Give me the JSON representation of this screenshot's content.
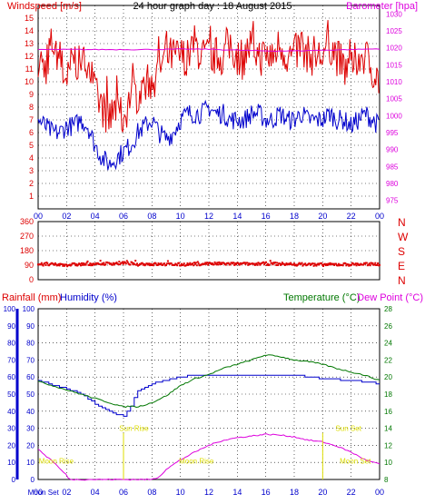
{
  "chart_data": [
    {
      "type": "line",
      "title": "24 hour graph day : 18 August 2015",
      "ylabel": "Windspeed [m/s]",
      "ylabel_right": "Barometer [hpa]",
      "ylim": [
        0,
        16
      ],
      "ylim_right": [
        972.5,
        1032.5
      ],
      "yticks": [
        1,
        2,
        3,
        4,
        5,
        6,
        7,
        8,
        9,
        10,
        11,
        12,
        13,
        14,
        15
      ],
      "yticks_right": [
        975,
        980,
        985,
        990,
        995,
        1000,
        1005,
        1010,
        1015,
        1020,
        1025,
        1030
      ],
      "xticks": [
        "00",
        "02",
        "04",
        "06",
        "08",
        "10",
        "12",
        "14",
        "16",
        "18",
        "20",
        "22",
        "00"
      ],
      "grid": true,
      "colors": {
        "wind_gust": "#dd0000",
        "wind_avg": "#0000cc",
        "barometer": "#dd00dd"
      },
      "series": [
        {
          "key": "wind_gust",
          "x": [
            0,
            0.5,
            1,
            1.5,
            2,
            2.5,
            3,
            3.5,
            4,
            4.5,
            5,
            5.5,
            6,
            6.5,
            7,
            7.5,
            8,
            8.5,
            9,
            9.5,
            10,
            10.5,
            11,
            11.5,
            12,
            12.5,
            13,
            13.5,
            14,
            14.5,
            15,
            15.5,
            16,
            16.5,
            17,
            17.5,
            18,
            18.5,
            19,
            19.5,
            20,
            20.5,
            21,
            21.5,
            22,
            22.5,
            23,
            23.5,
            24
          ],
          "values": [
            12,
            11,
            13,
            12,
            10,
            12,
            11,
            12,
            9,
            8,
            7,
            8,
            7,
            9,
            9,
            10,
            10,
            11,
            12,
            12,
            12,
            12,
            13,
            12,
            12,
            12,
            12,
            13,
            12,
            12,
            13,
            12,
            12,
            12,
            13,
            12,
            12,
            13,
            12,
            12,
            12,
            13,
            12,
            11,
            11,
            12,
            12,
            11,
            10
          ]
        },
        {
          "key": "wind_avg",
          "x": [
            0,
            0.5,
            1,
            1.5,
            2,
            2.5,
            3,
            3.5,
            4,
            4.5,
            5,
            5.5,
            6,
            6.5,
            7,
            7.5,
            8,
            8.5,
            9,
            9.5,
            10,
            10.5,
            11,
            11.5,
            12,
            12.5,
            13,
            13.5,
            14,
            14.5,
            15,
            15.5,
            16,
            16.5,
            17,
            17.5,
            18,
            18.5,
            19,
            19.5,
            20,
            20.5,
            21,
            21.5,
            22,
            22.5,
            23,
            23.5,
            24
          ],
          "values": [
            7,
            6.5,
            6,
            6,
            6.5,
            6.5,
            7,
            6.5,
            5,
            4,
            3.5,
            4,
            4.5,
            5,
            6,
            6.5,
            7,
            6,
            5.5,
            6,
            7,
            7.5,
            7.5,
            7.5,
            8,
            7.5,
            7.5,
            7,
            7,
            7,
            7.5,
            7.5,
            7,
            7,
            7.5,
            7,
            7,
            7.5,
            7,
            7,
            7,
            7.5,
            7,
            7,
            6.5,
            7,
            7.5,
            7,
            6.5
          ]
        },
        {
          "key": "barometer",
          "x": [
            0,
            2,
            4,
            6,
            8,
            10,
            12,
            14,
            16,
            18,
            20,
            22,
            24
          ],
          "values": [
            1019.5,
            1019.5,
            1019.5,
            1019.5,
            1019.5,
            1019.6,
            1019.6,
            1019.3,
            1019.1,
            1019.1,
            1019.3,
            1019.5,
            1019.7
          ]
        }
      ]
    },
    {
      "type": "scatter",
      "ylabel": "",
      "ylim": [
        0,
        360
      ],
      "yticks": [
        0,
        90,
        180,
        270,
        360
      ],
      "compass": [
        "N",
        "W",
        "S",
        "E",
        "N"
      ],
      "color": "#dd0000",
      "series": [
        {
          "name": "wind direction",
          "x": [
            0,
            2,
            4,
            6,
            8,
            10,
            12,
            14,
            16,
            18,
            20,
            22,
            24
          ],
          "values": [
            95,
            92,
            98,
            102,
            96,
            94,
            100,
            97,
            99,
            96,
            93,
            95,
            97
          ]
        }
      ]
    },
    {
      "type": "line",
      "ylabel": "Rainfall (mm)",
      "ylabel2": "Humidity (%)",
      "ylabel_right": "Temperature (°C)",
      "ylabel_right2": "Dew Point (°C)",
      "ylim": [
        0,
        100
      ],
      "ylim_right": [
        8,
        28
      ],
      "yticks": [
        0,
        10,
        20,
        30,
        40,
        50,
        60,
        70,
        80,
        90,
        100
      ],
      "yticks_right": [
        8,
        10,
        12,
        14,
        16,
        18,
        20,
        22,
        24,
        26,
        28
      ],
      "xticks": [
        "00",
        "02",
        "04",
        "06",
        "08",
        "10",
        "12",
        "14",
        "16",
        "18",
        "20",
        "22",
        "00"
      ],
      "grid": true,
      "colors": {
        "rain": "#0000cc",
        "humidity": "#0000cc",
        "temperature": "#007700",
        "dew_point": "#dd00dd",
        "sun_moon": "#dddd00"
      },
      "series": [
        {
          "key": "humidity",
          "x": [
            0,
            1,
            2,
            3,
            4,
            4.5,
            5,
            5.5,
            6,
            6.5,
            7,
            8,
            9,
            10,
            11,
            12,
            14,
            16,
            18,
            20,
            22,
            24
          ],
          "values": [
            58,
            55,
            53,
            50,
            44,
            42,
            40,
            38,
            37,
            43,
            52,
            56,
            58,
            60,
            61,
            61,
            61,
            61,
            61,
            59,
            58,
            56
          ]
        },
        {
          "key": "temperature",
          "x": [
            0,
            1,
            2,
            3,
            4,
            5,
            6,
            6.5,
            7,
            8,
            9,
            10,
            11,
            12,
            13,
            14,
            15,
            16,
            17,
            18,
            19,
            20,
            21,
            22,
            23,
            24
          ],
          "values": [
            19.5,
            19,
            18.5,
            18,
            17.5,
            17,
            16.5,
            16.6,
            16.5,
            17,
            17.8,
            19,
            19.8,
            20.3,
            21,
            21.5,
            22,
            22.6,
            22.4,
            22,
            21.8,
            21.5,
            21,
            20.6,
            20.2,
            19.6
          ]
        },
        {
          "key": "dew_point",
          "x": [
            0,
            0.5,
            1,
            1.5,
            2,
            2.2,
            5,
            8,
            8.5,
            9,
            10,
            11,
            12,
            13,
            14,
            15,
            16,
            17,
            18,
            19,
            20,
            21,
            22,
            23,
            24
          ],
          "values": [
            11.6,
            10.8,
            10.2,
            9.3,
            8.5,
            8,
            8,
            8,
            8.3,
            9.2,
            10.3,
            11.2,
            12,
            12.6,
            12.9,
            13.1,
            13.3,
            13.2,
            13,
            12.6,
            12.4,
            11.9,
            11.2,
            10.3,
            9.8
          ]
        }
      ],
      "annotations": [
        {
          "text": "Moon Rise",
          "hour": 0.05,
          "value": 11
        },
        {
          "text": "Sun Rise",
          "hour": 5.7,
          "value": 30
        },
        {
          "text": "Moon Rise",
          "hour": 9.9,
          "value": 11
        },
        {
          "text": "Sun Set",
          "hour": 20.9,
          "value": 30
        },
        {
          "text": "Moon Set",
          "hour": 21.2,
          "value": 11
        },
        {
          "text": "Moon Set",
          "hour": 0.1,
          "value": -12
        }
      ]
    }
  ]
}
